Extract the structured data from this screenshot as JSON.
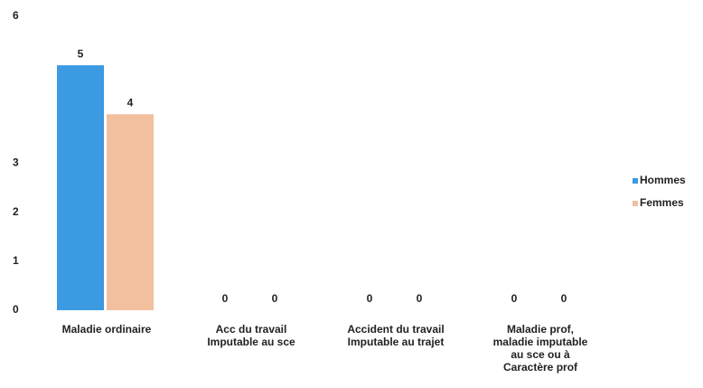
{
  "chart_data": {
    "type": "bar",
    "categories": [
      [
        "Maladie ordinaire"
      ],
      [
        "Acc du travail",
        "Imputable au sce"
      ],
      [
        "Accident du travail",
        "Imputable au trajet"
      ],
      [
        "Maladie prof,",
        "maladie imputable",
        "au sce ou à",
        "Caractère prof"
      ]
    ],
    "series": [
      {
        "name": "Hommes",
        "color": "#3b9ae1",
        "values": [
          5,
          0,
          0,
          0
        ]
      },
      {
        "name": "Femmes",
        "color": "#f2bf9f",
        "values": [
          4,
          0,
          0,
          0
        ]
      }
    ],
    "ylim": [
      0,
      6
    ],
    "yticks": [
      0,
      1,
      2,
      3,
      6
    ],
    "grid": false,
    "legend": "right"
  }
}
